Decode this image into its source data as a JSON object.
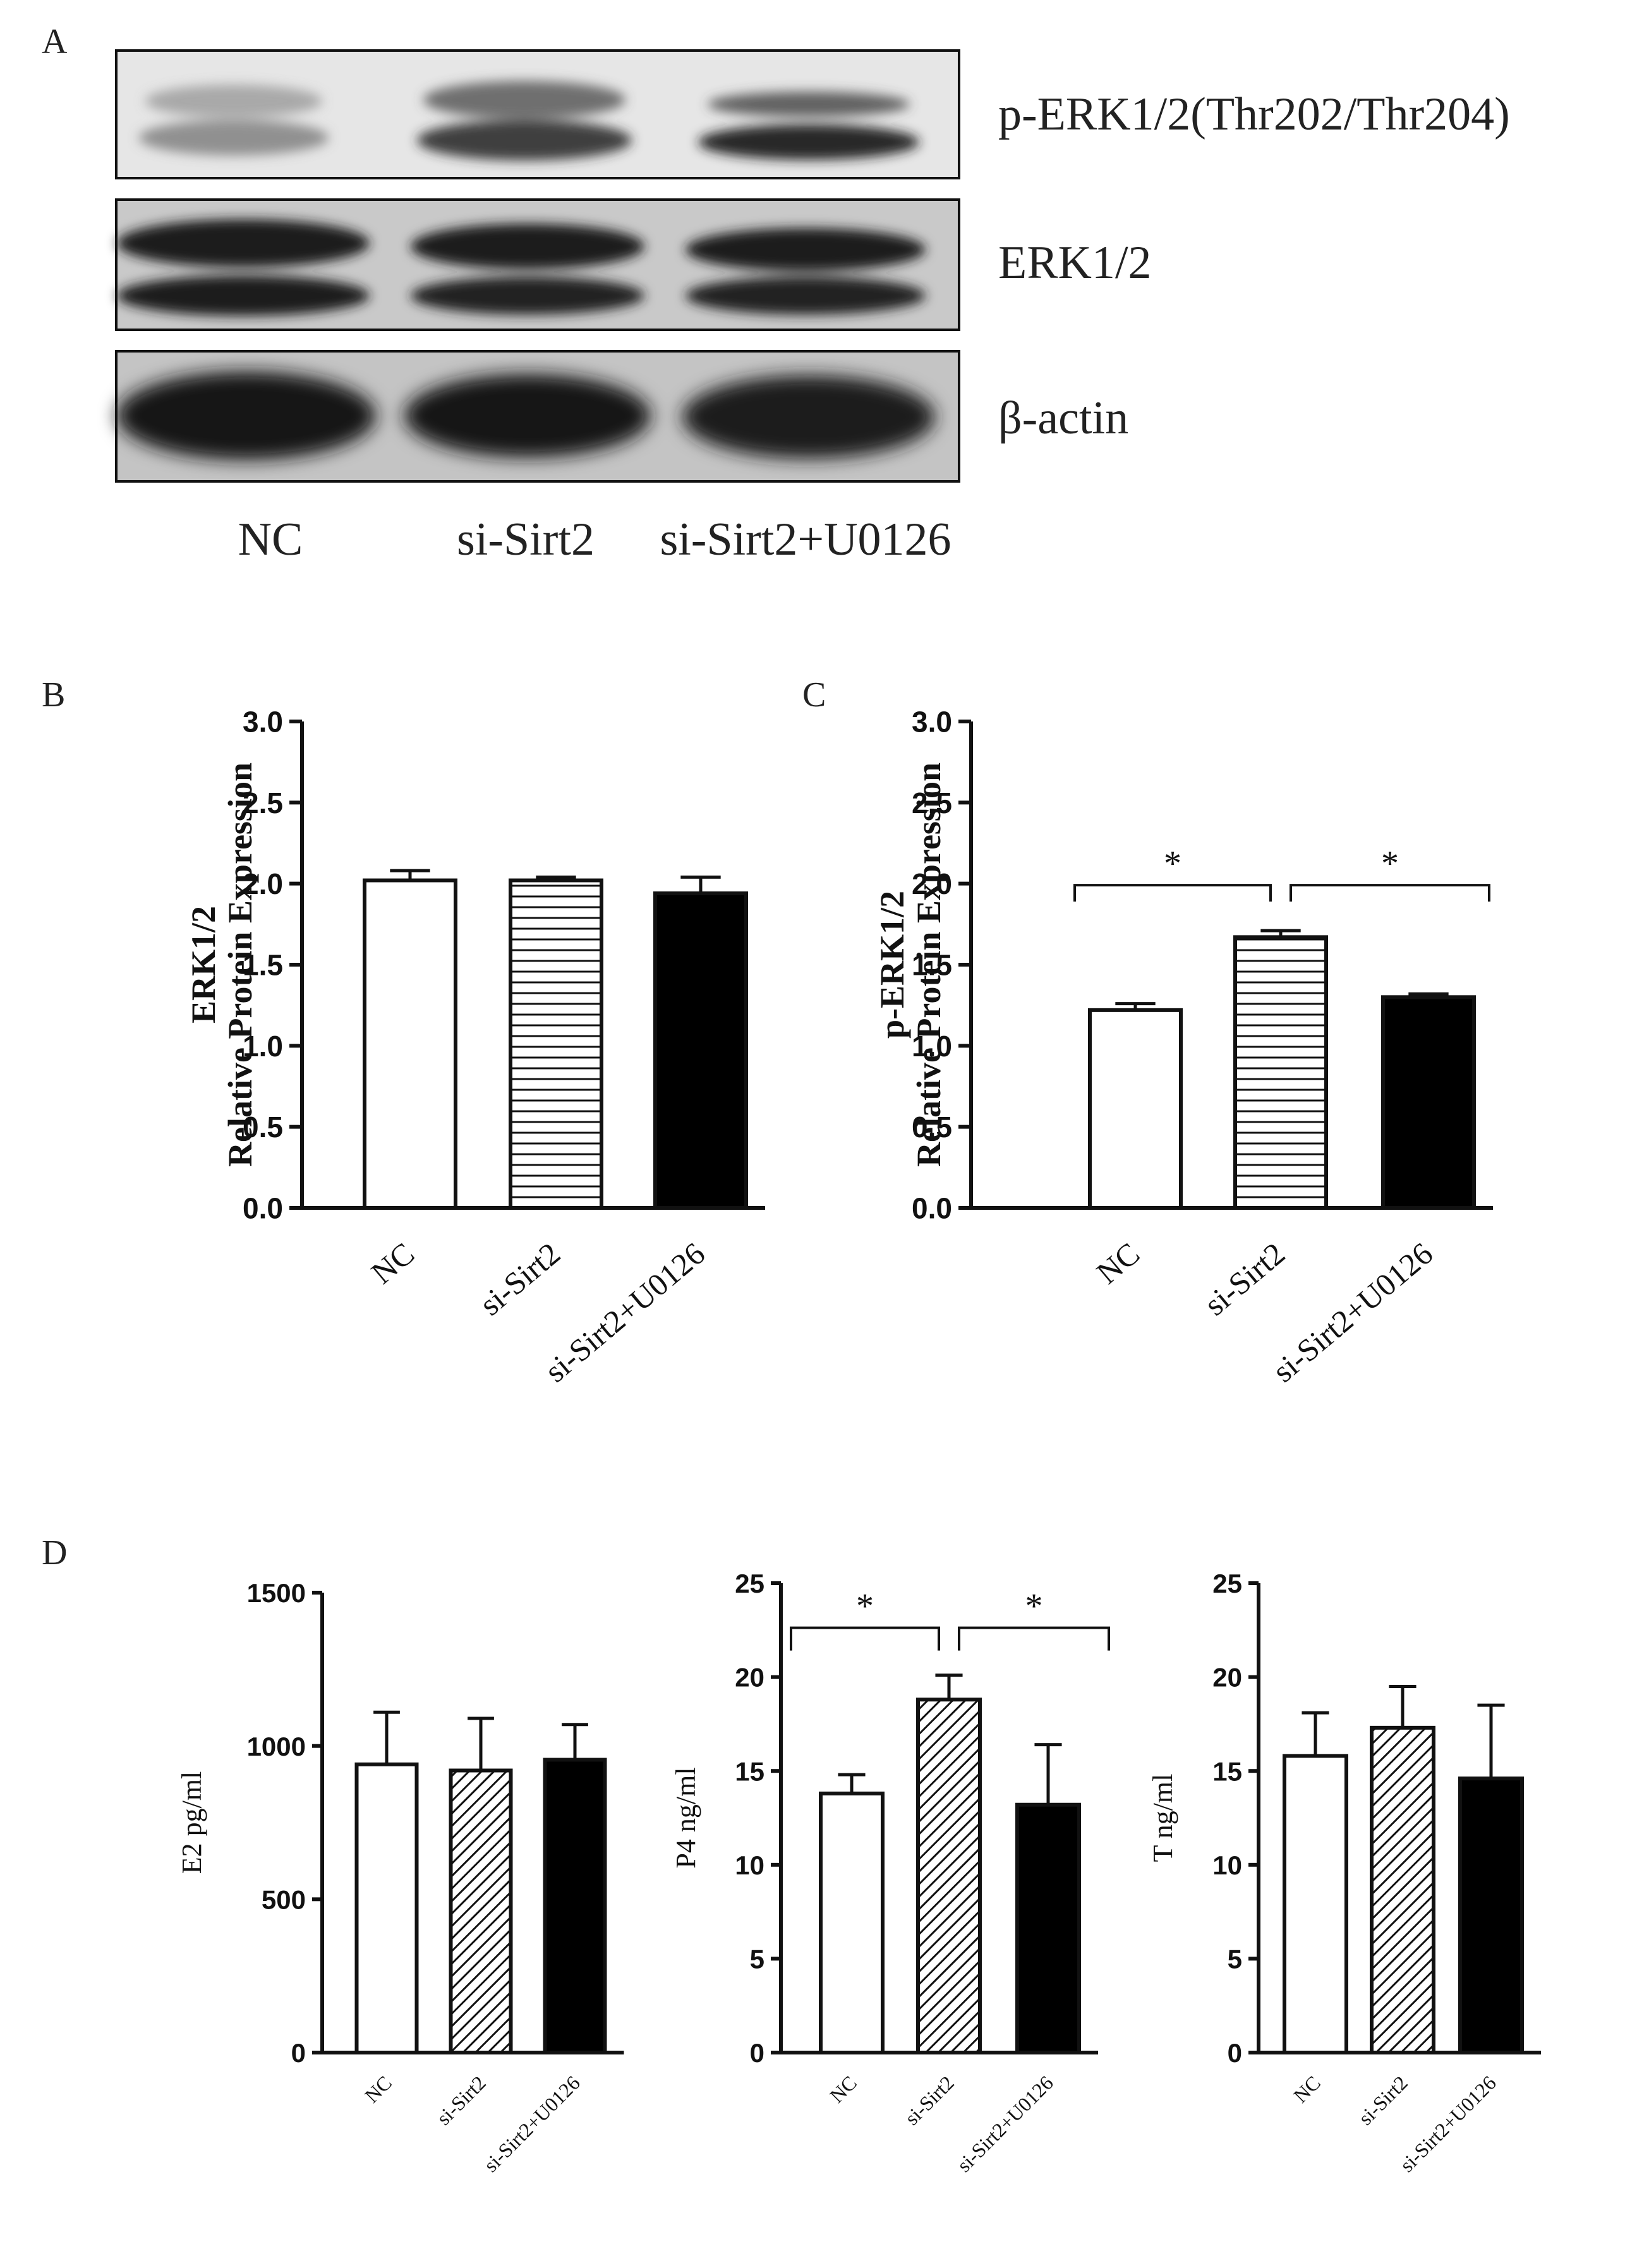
{
  "panels": {
    "A": "A",
    "B": "B",
    "C": "C",
    "D": "D"
  },
  "blot": {
    "labels": [
      "p-ERK1/2(Thr202/Thr204)",
      "ERK1/2",
      "β-actin"
    ],
    "lanes": [
      "NC",
      "si-Sirt2",
      "si-Sirt2+U0126"
    ]
  },
  "chart_data": [
    {
      "id": "B",
      "type": "bar",
      "categories": [
        "NC",
        "si-Sirt2",
        "si-Sirt2+U0126"
      ],
      "values": [
        2.02,
        2.02,
        1.94
      ],
      "errors": [
        0.06,
        0.02,
        0.1
      ],
      "ylabel_lines": [
        "ERK1/2",
        "Relative Protein Expression"
      ],
      "ylim": [
        0,
        3.0
      ],
      "yticks": [
        "0.0",
        "0.5",
        "1.0",
        "1.5",
        "2.0",
        "2.5",
        "3.0"
      ],
      "fills": [
        "white",
        "hlines",
        "black"
      ],
      "significance": []
    },
    {
      "id": "C",
      "type": "bar",
      "categories": [
        "NC",
        "si-Sirt2",
        "si-Sirt2+U0126"
      ],
      "values": [
        1.22,
        1.67,
        1.3
      ],
      "errors": [
        0.04,
        0.04,
        0.02
      ],
      "ylabel_lines": [
        "p-ERK1/2",
        "Relative Protein Expression"
      ],
      "ylim": [
        0,
        3.0
      ],
      "yticks": [
        "0.0",
        "0.5",
        "1.0",
        "1.5",
        "2.0",
        "2.5",
        "3.0"
      ],
      "fills": [
        "white",
        "hlines",
        "black"
      ],
      "significance": [
        {
          "from": 0,
          "to": 1,
          "label": "*"
        },
        {
          "from": 1,
          "to": 2,
          "label": "*"
        }
      ]
    },
    {
      "id": "D1",
      "type": "bar",
      "categories": [
        "NC",
        "si-Sirt2",
        "si-Sirt2+U0126"
      ],
      "values": [
        940,
        920,
        955
      ],
      "errors": [
        170,
        170,
        115
      ],
      "ylabel": "E2  pg/ml",
      "ylim": [
        0,
        1500
      ],
      "yticks": [
        "0",
        "500",
        "1000",
        "1500"
      ],
      "fills": [
        "white",
        "diag",
        "black"
      ],
      "significance": []
    },
    {
      "id": "D2",
      "type": "bar",
      "categories": [
        "NC",
        "si-Sirt2",
        "si-Sirt2+U0126"
      ],
      "values": [
        13.8,
        18.8,
        13.2
      ],
      "errors": [
        1.0,
        1.3,
        3.2
      ],
      "ylabel": "P4  ng/ml",
      "ylim": [
        0,
        25
      ],
      "yticks": [
        "0",
        "5",
        "10",
        "15",
        "20",
        "25"
      ],
      "fills": [
        "white",
        "diag",
        "black"
      ],
      "significance": [
        {
          "from": 0,
          "to": 1,
          "label": "*"
        },
        {
          "from": 1,
          "to": 2,
          "label": "*"
        }
      ]
    },
    {
      "id": "D3",
      "type": "bar",
      "categories": [
        "NC",
        "si-Sirt2",
        "si-Sirt2+U0126"
      ],
      "values": [
        15.8,
        17.3,
        14.6
      ],
      "errors": [
        2.3,
        2.2,
        3.9
      ],
      "ylabel": "T  ng/ml",
      "ylim": [
        0,
        25
      ],
      "yticks": [
        "0",
        "5",
        "10",
        "15",
        "20",
        "25"
      ],
      "fills": [
        "white",
        "diag",
        "black"
      ],
      "significance": []
    }
  ]
}
